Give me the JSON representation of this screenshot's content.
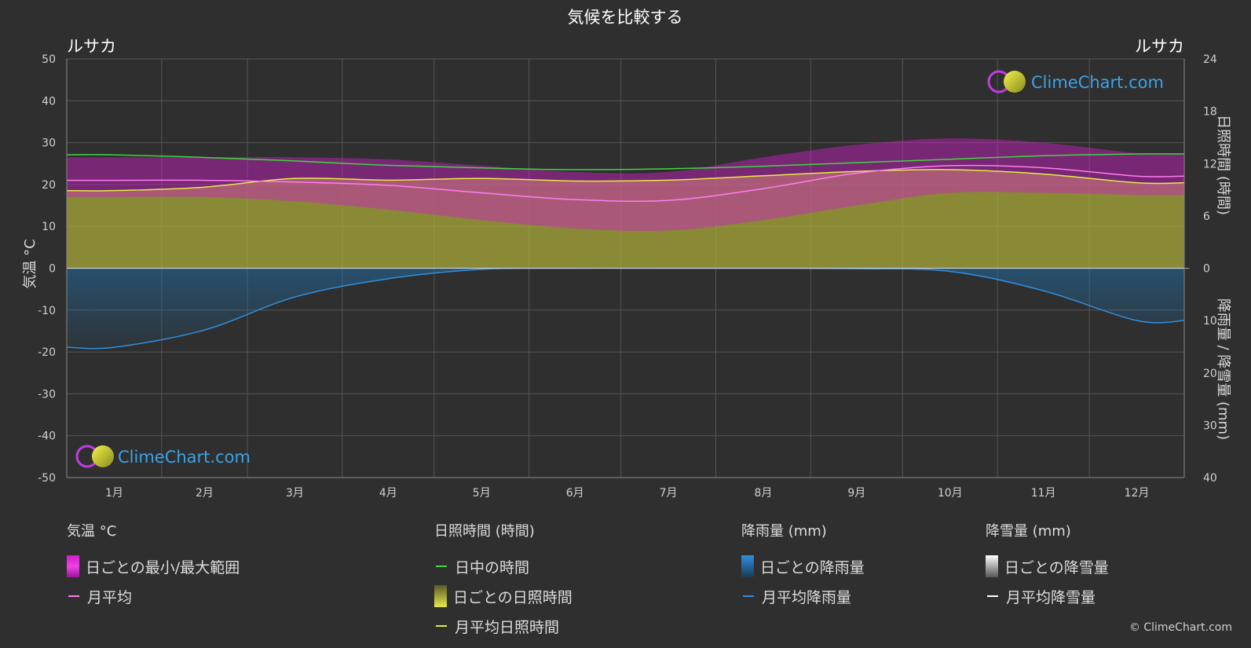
{
  "chart_data": {
    "type": "area",
    "title": "気候を比較する",
    "location_left": "ルサカ",
    "location_right": "ルサカ",
    "categories": [
      "1月",
      "2月",
      "3月",
      "4月",
      "5月",
      "6月",
      "7月",
      "8月",
      "9月",
      "10月",
      "11月",
      "12月"
    ],
    "y_left": {
      "label": "気温 °C",
      "range": [
        -50,
        50
      ],
      "ticks": [
        50,
        40,
        30,
        20,
        10,
        0,
        -10,
        -20,
        -30,
        -40,
        -50
      ]
    },
    "y_right_top": {
      "label": "日照時間 (時間)",
      "range": [
        0,
        24
      ],
      "ticks": [
        24,
        18,
        12,
        6,
        0
      ]
    },
    "y_right_bottom": {
      "label": "降雨量 / 降雪量 (mm)",
      "range": [
        0,
        40
      ],
      "ticks": [
        10,
        20,
        30,
        40
      ]
    },
    "grid": true,
    "series": [
      {
        "name": "日中の時間",
        "unit": "時間",
        "values": [
          13.0,
          12.7,
          12.3,
          11.8,
          11.5,
          11.3,
          11.4,
          11.7,
          12.1,
          12.5,
          12.9,
          13.1
        ]
      },
      {
        "name": "月平均日照時間",
        "unit": "時間",
        "values": [
          8.9,
          9.3,
          10.3,
          10.1,
          10.3,
          10.0,
          10.1,
          10.6,
          11.1,
          11.3,
          10.8,
          9.8
        ]
      },
      {
        "name": "月平均",
        "unit": "°C",
        "values": [
          21.0,
          21.0,
          20.6,
          19.8,
          18.0,
          16.4,
          16.2,
          19.0,
          22.7,
          24.5,
          24.0,
          22.0
        ]
      },
      {
        "name": "日ごとの最小/最大範囲 (最高)",
        "unit": "°C",
        "values": [
          26.5,
          26.5,
          26.5,
          26.0,
          24.5,
          23.0,
          23.0,
          26.5,
          29.5,
          31.0,
          30.0,
          27.5
        ]
      },
      {
        "name": "日ごとの最小/最大範囲 (最低)",
        "unit": "°C",
        "values": [
          17.0,
          17.0,
          16.0,
          14.0,
          11.5,
          9.5,
          9.0,
          11.5,
          15.0,
          18.0,
          18.0,
          17.5
        ]
      },
      {
        "name": "月平均降雨量",
        "unit": "mm",
        "values": [
          15.1,
          11.8,
          5.5,
          2.0,
          0.2,
          0.0,
          0.0,
          0.0,
          0.1,
          0.6,
          4.3,
          10.0
        ]
      }
    ],
    "legend_placement": "bottom"
  },
  "legend": {
    "temp": {
      "head": "気温 °C",
      "range": "日ごとの最小/最大範囲",
      "avg": "月平均"
    },
    "sun": {
      "head": "日照時間 (時間)",
      "daylight": "日中の時間",
      "daily": "日ごとの日照時間",
      "avg": "月平均日照時間"
    },
    "rain": {
      "head": "降雨量 (mm)",
      "daily": "日ごとの降雨量",
      "avg": "月平均降雨量"
    },
    "snow": {
      "head": "降雪量 (mm)",
      "daily": "日ごとの降雪量",
      "avg": "月平均降雪量"
    }
  },
  "watermark": "ClimeChart.com",
  "copyright": "© ClimeChart.com",
  "colors": {
    "background": "#2f2f2f",
    "grid": "#555555",
    "daylight": "#3fd63f",
    "sunshine_fill": "#a8a83a",
    "sunshine_line": "#e8e84a",
    "temp_range": "#d01ec8",
    "temp_avg": "#ff7cf0",
    "rain_fill": "#1e6fa8",
    "rain_line": "#2e8fe0",
    "snow": "#ffffff"
  }
}
